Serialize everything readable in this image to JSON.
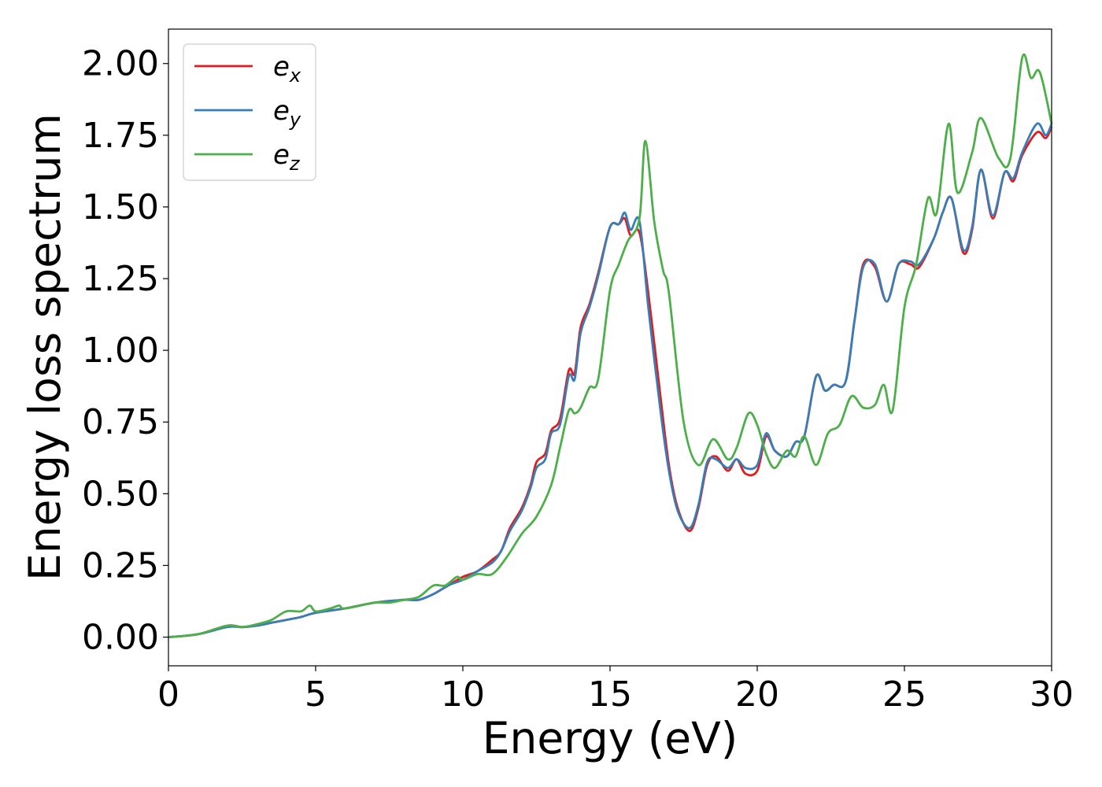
{
  "chart_data": {
    "type": "line",
    "xlabel": "Energy (eV)",
    "ylabel": "Energy loss spectrum",
    "xlim": [
      0,
      30
    ],
    "ylim": [
      -0.1,
      2.12
    ],
    "xticks": [
      "0",
      "5",
      "10",
      "15",
      "20",
      "25",
      "30"
    ],
    "yticks": [
      "0.00",
      "0.25",
      "0.50",
      "0.75",
      "1.00",
      "1.25",
      "1.50",
      "1.75",
      "2.00"
    ],
    "grid": false,
    "legend_position": "top-left",
    "series": [
      {
        "name": "e",
        "subscript": "x",
        "color": "#e41a1c",
        "points": [
          [
            0,
            0
          ],
          [
            1,
            0.01
          ],
          [
            2,
            0.04
          ],
          [
            2.5,
            0.035
          ],
          [
            3,
            0.04
          ],
          [
            3.5,
            0.05
          ],
          [
            4,
            0.06
          ],
          [
            4.5,
            0.07
          ],
          [
            5,
            0.085
          ],
          [
            6,
            0.1
          ],
          [
            7,
            0.12
          ],
          [
            8,
            0.13
          ],
          [
            8.5,
            0.13
          ],
          [
            9,
            0.15
          ],
          [
            9.5,
            0.18
          ],
          [
            10,
            0.21
          ],
          [
            10.5,
            0.23
          ],
          [
            11,
            0.27
          ],
          [
            11.3,
            0.3
          ],
          [
            11.6,
            0.38
          ],
          [
            12,
            0.45
          ],
          [
            12.3,
            0.53
          ],
          [
            12.5,
            0.61
          ],
          [
            12.8,
            0.64
          ],
          [
            13,
            0.72
          ],
          [
            13.3,
            0.76
          ],
          [
            13.6,
            0.93
          ],
          [
            13.8,
            0.92
          ],
          [
            14,
            1.08
          ],
          [
            14.3,
            1.16
          ],
          [
            14.6,
            1.27
          ],
          [
            15,
            1.43
          ],
          [
            15.3,
            1.44
          ],
          [
            15.5,
            1.46
          ],
          [
            15.7,
            1.4
          ],
          [
            16,
            1.41
          ],
          [
            16.3,
            1.2
          ],
          [
            16.7,
            0.85
          ],
          [
            17,
            0.6
          ],
          [
            17.3,
            0.45
          ],
          [
            17.7,
            0.37
          ],
          [
            18,
            0.45
          ],
          [
            18.3,
            0.6
          ],
          [
            18.6,
            0.63
          ],
          [
            19,
            0.58
          ],
          [
            19.3,
            0.62
          ],
          [
            19.6,
            0.57
          ],
          [
            20,
            0.58
          ],
          [
            20.3,
            0.7
          ],
          [
            20.6,
            0.65
          ],
          [
            21,
            0.63
          ],
          [
            21.3,
            0.68
          ],
          [
            21.6,
            0.7
          ],
          [
            22,
            0.91
          ],
          [
            22.3,
            0.86
          ],
          [
            22.6,
            0.88
          ],
          [
            23,
            0.89
          ],
          [
            23.3,
            1.1
          ],
          [
            23.6,
            1.3
          ],
          [
            24,
            1.29
          ],
          [
            24.4,
            1.17
          ],
          [
            24.8,
            1.3
          ],
          [
            25.2,
            1.3
          ],
          [
            25.5,
            1.29
          ],
          [
            26,
            1.39
          ],
          [
            26.3,
            1.48
          ],
          [
            26.6,
            1.53
          ],
          [
            27,
            1.34
          ],
          [
            27.3,
            1.42
          ],
          [
            27.6,
            1.63
          ],
          [
            28,
            1.46
          ],
          [
            28.4,
            1.62
          ],
          [
            28.7,
            1.59
          ],
          [
            29,
            1.68
          ],
          [
            29.5,
            1.76
          ],
          [
            29.8,
            1.74
          ],
          [
            30,
            1.78
          ]
        ]
      },
      {
        "name": "e",
        "subscript": "y",
        "color": "#377eb8",
        "points": [
          [
            0,
            0
          ],
          [
            1,
            0.01
          ],
          [
            2,
            0.035
          ],
          [
            2.5,
            0.035
          ],
          [
            3,
            0.04
          ],
          [
            3.5,
            0.05
          ],
          [
            4,
            0.06
          ],
          [
            4.5,
            0.07
          ],
          [
            5,
            0.085
          ],
          [
            6,
            0.1
          ],
          [
            7,
            0.12
          ],
          [
            8,
            0.13
          ],
          [
            8.5,
            0.13
          ],
          [
            9,
            0.15
          ],
          [
            9.5,
            0.18
          ],
          [
            10,
            0.2
          ],
          [
            10.5,
            0.23
          ],
          [
            11,
            0.26
          ],
          [
            11.3,
            0.3
          ],
          [
            11.6,
            0.37
          ],
          [
            12,
            0.44
          ],
          [
            12.3,
            0.52
          ],
          [
            12.5,
            0.59
          ],
          [
            12.8,
            0.62
          ],
          [
            13,
            0.71
          ],
          [
            13.3,
            0.74
          ],
          [
            13.6,
            0.91
          ],
          [
            13.8,
            0.9
          ],
          [
            14,
            1.06
          ],
          [
            14.3,
            1.15
          ],
          [
            14.6,
            1.26
          ],
          [
            15,
            1.43
          ],
          [
            15.3,
            1.44
          ],
          [
            15.5,
            1.48
          ],
          [
            15.7,
            1.42
          ],
          [
            16,
            1.45
          ],
          [
            16.3,
            1.15
          ],
          [
            16.7,
            0.8
          ],
          [
            17,
            0.58
          ],
          [
            17.3,
            0.44
          ],
          [
            17.7,
            0.38
          ],
          [
            18,
            0.46
          ],
          [
            18.3,
            0.61
          ],
          [
            18.6,
            0.62
          ],
          [
            19,
            0.59
          ],
          [
            19.3,
            0.62
          ],
          [
            19.6,
            0.59
          ],
          [
            20,
            0.6
          ],
          [
            20.3,
            0.71
          ],
          [
            20.6,
            0.65
          ],
          [
            21,
            0.63
          ],
          [
            21.3,
            0.68
          ],
          [
            21.6,
            0.7
          ],
          [
            22,
            0.91
          ],
          [
            22.3,
            0.86
          ],
          [
            22.6,
            0.88
          ],
          [
            23,
            0.89
          ],
          [
            23.3,
            1.1
          ],
          [
            23.6,
            1.29
          ],
          [
            24,
            1.3
          ],
          [
            24.4,
            1.17
          ],
          [
            24.8,
            1.3
          ],
          [
            25.2,
            1.31
          ],
          [
            25.5,
            1.3
          ],
          [
            26,
            1.39
          ],
          [
            26.3,
            1.48
          ],
          [
            26.6,
            1.53
          ],
          [
            27,
            1.35
          ],
          [
            27.3,
            1.43
          ],
          [
            27.6,
            1.63
          ],
          [
            28,
            1.47
          ],
          [
            28.4,
            1.62
          ],
          [
            28.7,
            1.6
          ],
          [
            29,
            1.69
          ],
          [
            29.5,
            1.79
          ],
          [
            29.8,
            1.75
          ],
          [
            30,
            1.79
          ]
        ]
      },
      {
        "name": "e",
        "subscript": "z",
        "color": "#4daf4a",
        "points": [
          [
            0,
            0
          ],
          [
            1,
            0.01
          ],
          [
            2,
            0.04
          ],
          [
            2.5,
            0.035
          ],
          [
            3,
            0.045
          ],
          [
            3.5,
            0.06
          ],
          [
            4,
            0.09
          ],
          [
            4.5,
            0.09
          ],
          [
            4.8,
            0.11
          ],
          [
            5,
            0.09
          ],
          [
            5.5,
            0.1
          ],
          [
            5.8,
            0.11
          ],
          [
            6,
            0.1
          ],
          [
            7,
            0.12
          ],
          [
            7.5,
            0.12
          ],
          [
            8,
            0.13
          ],
          [
            8.5,
            0.14
          ],
          [
            9,
            0.18
          ],
          [
            9.4,
            0.18
          ],
          [
            9.8,
            0.21
          ],
          [
            10,
            0.2
          ],
          [
            10.5,
            0.22
          ],
          [
            11,
            0.22
          ],
          [
            11.5,
            0.28
          ],
          [
            12,
            0.36
          ],
          [
            12.5,
            0.42
          ],
          [
            13,
            0.53
          ],
          [
            13.3,
            0.66
          ],
          [
            13.6,
            0.79
          ],
          [
            13.8,
            0.78
          ],
          [
            14,
            0.8
          ],
          [
            14.3,
            0.87
          ],
          [
            14.6,
            0.9
          ],
          [
            15,
            1.21
          ],
          [
            15.3,
            1.3
          ],
          [
            15.6,
            1.38
          ],
          [
            16,
            1.46
          ],
          [
            16.2,
            1.73
          ],
          [
            16.5,
            1.45
          ],
          [
            16.8,
            1.28
          ],
          [
            17,
            1.2
          ],
          [
            17.5,
            0.75
          ],
          [
            18,
            0.6
          ],
          [
            18.5,
            0.69
          ],
          [
            19,
            0.62
          ],
          [
            19.3,
            0.66
          ],
          [
            19.7,
            0.78
          ],
          [
            20,
            0.74
          ],
          [
            20.3,
            0.64
          ],
          [
            20.6,
            0.59
          ],
          [
            21,
            0.65
          ],
          [
            21.3,
            0.63
          ],
          [
            21.6,
            0.7
          ],
          [
            22,
            0.6
          ],
          [
            22.4,
            0.71
          ],
          [
            22.8,
            0.74
          ],
          [
            23.2,
            0.84
          ],
          [
            23.6,
            0.8
          ],
          [
            24,
            0.81
          ],
          [
            24.3,
            0.88
          ],
          [
            24.6,
            0.79
          ],
          [
            25,
            1.15
          ],
          [
            25.4,
            1.3
          ],
          [
            25.8,
            1.53
          ],
          [
            26.1,
            1.48
          ],
          [
            26.5,
            1.79
          ],
          [
            26.8,
            1.55
          ],
          [
            27.3,
            1.69
          ],
          [
            27.6,
            1.81
          ],
          [
            28.2,
            1.67
          ],
          [
            28.6,
            1.67
          ],
          [
            29,
            2.02
          ],
          [
            29.3,
            1.95
          ],
          [
            29.6,
            1.97
          ],
          [
            30,
            1.79
          ]
        ]
      }
    ]
  }
}
